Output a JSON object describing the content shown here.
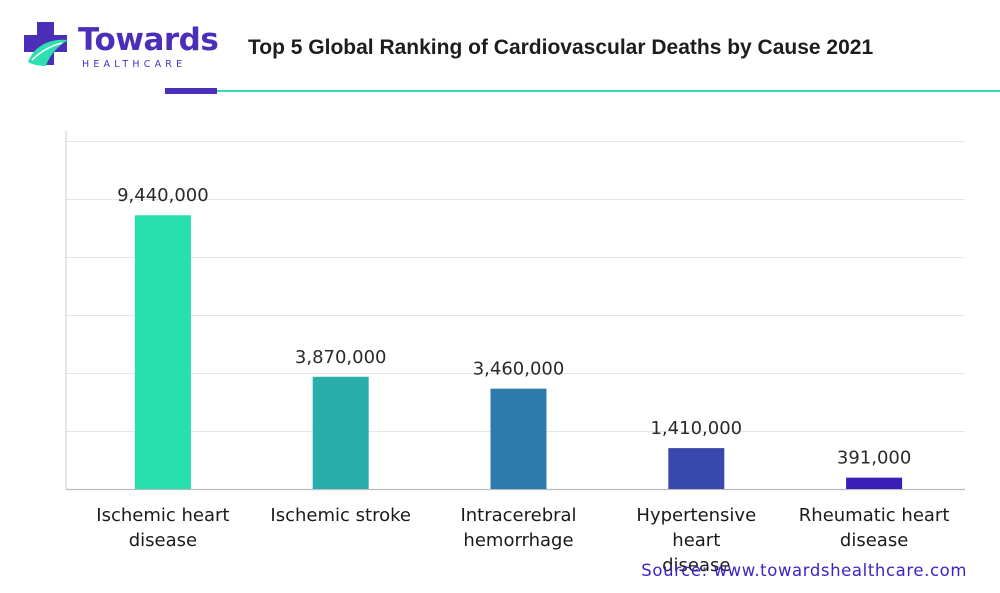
{
  "brand": {
    "name": "Towards",
    "sub": "HEALTHCARE",
    "primary_color": "#4c2fb8",
    "accent_color": "#2ee0b0"
  },
  "chart_data": {
    "type": "bar",
    "title": "Top 5 Global Ranking of Cardiovascular Deaths by Cause 2021",
    "categories": [
      [
        "Ischemic heart",
        "disease"
      ],
      [
        "Ischemic stroke"
      ],
      [
        "Intracerebral",
        "hemorrhage"
      ],
      [
        "Hypertensive heart",
        "disease"
      ],
      [
        "Rheumatic heart",
        "disease"
      ]
    ],
    "values": [
      9440000,
      3870000,
      3460000,
      1410000,
      391000
    ],
    "value_labels": [
      "9,440,000",
      "3,870,000",
      "3,460,000",
      "1,410,000",
      "391,000"
    ],
    "bar_colors": [
      "#26e0ae",
      "#2aaeac",
      "#2d7aac",
      "#3848ac",
      "#3a1fb8"
    ],
    "ylim": [
      0,
      12000000
    ],
    "grid": true,
    "xlabel": "",
    "ylabel": ""
  },
  "source": "Source: www.towardshealthcare.com"
}
